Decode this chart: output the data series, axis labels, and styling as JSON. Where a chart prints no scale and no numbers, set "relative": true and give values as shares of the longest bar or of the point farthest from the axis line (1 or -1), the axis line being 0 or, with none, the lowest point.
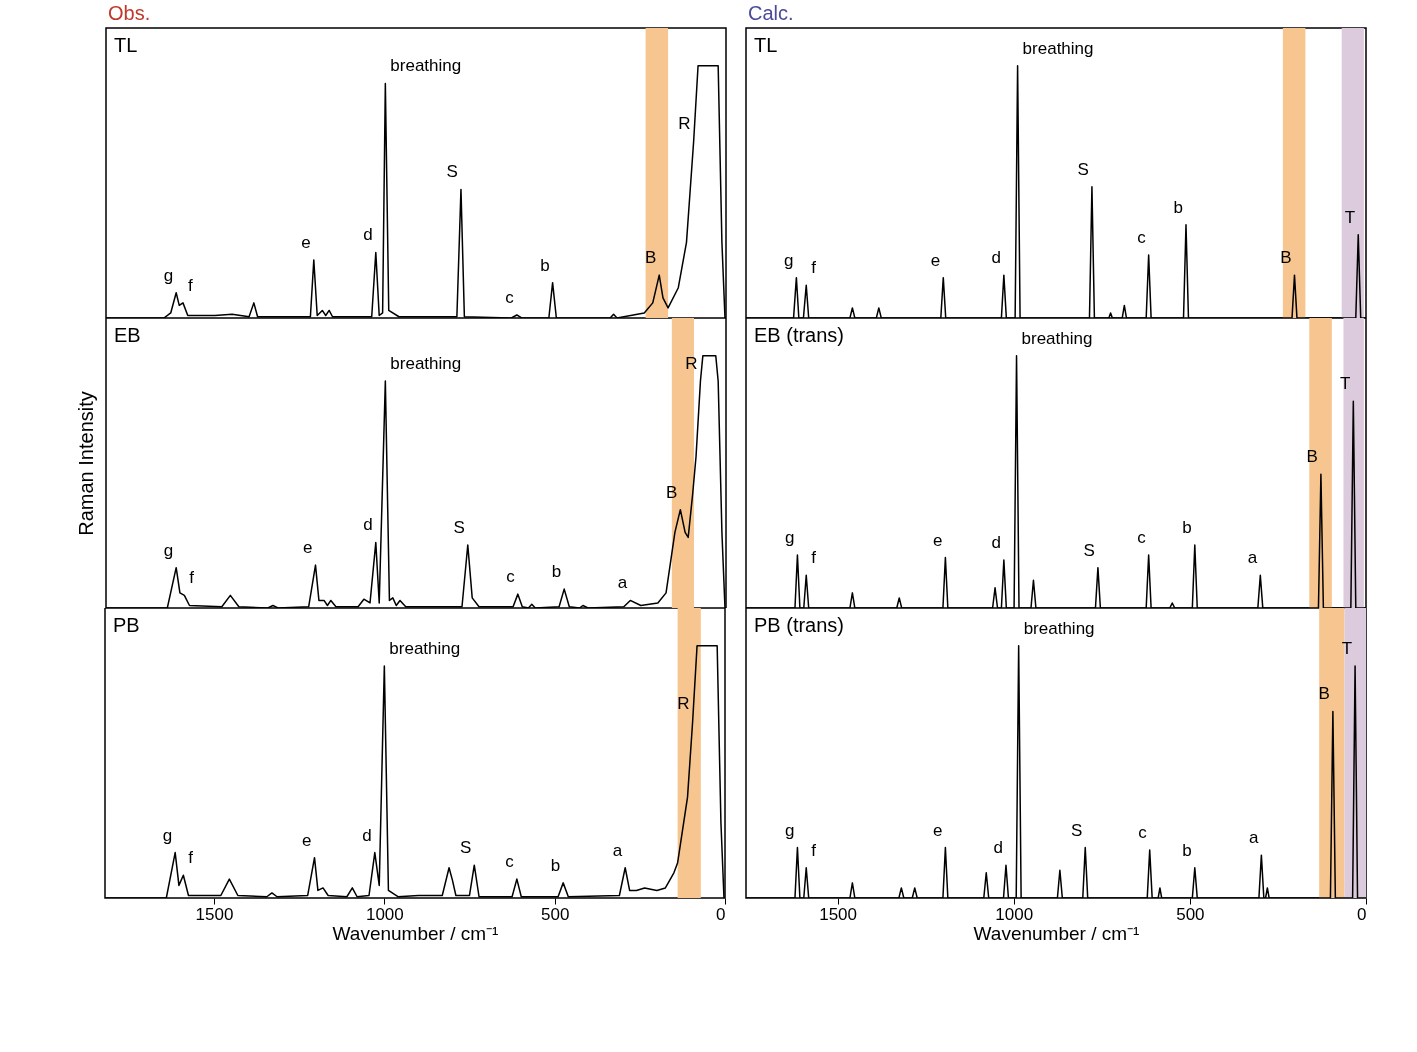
{
  "chart_data": [
    {
      "type": "line",
      "title": "TL",
      "annotations": [
        "Obs.",
        {
          "text": "g",
          "x": 1614,
          "y": 0.1
        },
        {
          "text": "f",
          "x": 1594,
          "y": 0.06
        },
        {
          "text": "e",
          "x": 1210,
          "y": 0.23
        },
        {
          "text": "d",
          "x": 1028,
          "y": 0.26
        },
        {
          "text": "breathing",
          "x": 1000,
          "y": 0.93
        },
        {
          "text": "S",
          "x": 778,
          "y": 0.51
        },
        {
          "text": "c",
          "x": 614,
          "y": 0.012
        },
        {
          "text": "b",
          "x": 509,
          "y": 0.14
        },
        {
          "text": "B",
          "x": 196,
          "y": 0.17
        },
        {
          "text": "R",
          "x": 95,
          "y": 0.7
        }
      ],
      "relative": true,
      "xlim": [
        1820,
        0
      ],
      "xticks": [
        1500,
        1000,
        500,
        0
      ],
      "tick_labels": false,
      "bands": [
        {
          "axis": "x",
          "from": 236,
          "to": 170,
          "color": "#f7c58f"
        }
      ],
      "series": [
        {
          "color": "#000000",
          "x": [
            1820,
            1650,
            1630,
            1614,
            1605,
            1594,
            1580,
            1500,
            1450,
            1400,
            1386,
            1375,
            1220,
            1210,
            1200,
            1185,
            1175,
            1165,
            1155,
            1040,
            1028,
            1018,
            1008,
            1000,
            990,
            960,
            790,
            778,
            768,
            630,
            614,
            600,
            520,
            509,
            498,
            340,
            330,
            320,
            240,
            215,
            196,
            185,
            170,
            140,
            116,
            95,
            82,
            23,
            12,
            3,
            0
          ],
          "values": [
            0,
            0,
            0.02,
            0.1,
            0.05,
            0.06,
            0.01,
            0.01,
            0.015,
            0.005,
            0.06,
            0.005,
            0.005,
            0.23,
            0.01,
            0.03,
            0.01,
            0.03,
            0.005,
            0.005,
            0.26,
            0.01,
            0.02,
            0.93,
            0.03,
            0.005,
            0.005,
            0.51,
            0.005,
            0,
            0.012,
            0,
            0,
            0.14,
            0,
            0,
            0.015,
            0,
            0.02,
            0.06,
            0.17,
            0.08,
            0.04,
            0.12,
            0.3,
            0.7,
            1,
            1,
            0.3,
            0,
            0
          ]
        }
      ]
    },
    {
      "type": "line",
      "title": "TL",
      "annotations": [
        "Calc.",
        {
          "text": "g",
          "x": 1617,
          "y": 0.16
        },
        {
          "text": "f",
          "x": 1589,
          "y": 0.13
        },
        {
          "text": "e",
          "x": 1200,
          "y": 0.16
        },
        {
          "text": "d",
          "x": 1028,
          "y": 0.17
        },
        {
          "text": "breathing",
          "x": 989,
          "y": 1
        },
        {
          "text": "S",
          "x": 778,
          "y": 0.52
        },
        {
          "text": "c",
          "x": 617,
          "y": 0.25
        },
        {
          "text": "b",
          "x": 511,
          "y": 0.37
        },
        {
          "text": "B",
          "x": 203,
          "y": 0.17
        },
        {
          "text": "T",
          "x": 22,
          "y": 0.33
        }
      ],
      "relative": true,
      "xlim": [
        1760,
        0
      ],
      "xticks": [
        1500,
        1000,
        500,
        0
      ],
      "tick_labels": false,
      "bands": [
        {
          "axis": "x",
          "from": 236,
          "to": 172,
          "color": "#f7c58f"
        },
        {
          "axis": "x",
          "from": 69,
          "to": 6,
          "color": "#dccbdc"
        }
      ],
      "series": [
        {
          "color": "#000000",
          "x": [
            1760,
            1625,
            1617,
            1610,
            1597,
            1589,
            1582,
            1465,
            1458,
            1451,
            1390,
            1383,
            1376,
            1207,
            1200,
            1193,
            1035,
            1028,
            1021,
            996,
            989,
            982,
            785,
            778,
            771,
            730,
            725,
            720,
            692,
            686,
            680,
            624,
            617,
            610,
            518,
            511,
            504,
            210,
            203,
            196,
            29,
            22,
            15,
            0
          ],
          "values": [
            0,
            0,
            0.16,
            0,
            0,
            0.13,
            0,
            0,
            0.04,
            0,
            0,
            0.04,
            0,
            0,
            0.16,
            0,
            0,
            0.17,
            0,
            0,
            1,
            0,
            0,
            0.52,
            0,
            0,
            0.02,
            0,
            0,
            0.05,
            0,
            0,
            0.25,
            0,
            0,
            0.37,
            0,
            0,
            0.17,
            0,
            0,
            0.33,
            0,
            0
          ]
        }
      ]
    },
    {
      "type": "line",
      "title": "EB",
      "ylabel": "Raman Intensity",
      "annotations": [
        {
          "text": "g",
          "x": 1614,
          "y": 0.16
        },
        {
          "text": "f",
          "x": 1590,
          "y": 0.05
        },
        {
          "text": "e",
          "x": 1205,
          "y": 0.17
        },
        {
          "text": "d",
          "x": 1028,
          "y": 0.26
        },
        {
          "text": "breathing",
          "x": 1000,
          "y": 0.9
        },
        {
          "text": "S",
          "x": 758,
          "y": 0.25
        },
        {
          "text": "c",
          "x": 611,
          "y": 0.055
        },
        {
          "text": "b",
          "x": 475,
          "y": 0.075
        },
        {
          "text": "a",
          "x": 281,
          "y": 0.03
        },
        {
          "text": "B",
          "x": 134,
          "y": 0.39
        },
        {
          "text": "R",
          "x": 75,
          "y": 0.9
        }
      ],
      "relative": true,
      "xlim": [
        1820,
        0
      ],
      "xticks": [
        1500,
        1000,
        500,
        0
      ],
      "tick_labels": false,
      "bands": [
        {
          "axis": "x",
          "from": 159,
          "to": 94,
          "color": "#f7c58f"
        }
      ],
      "series": [
        {
          "color": "#000000",
          "x": [
            1820,
            1640,
            1614,
            1603,
            1590,
            1575,
            1480,
            1455,
            1430,
            1345,
            1330,
            1315,
            1225,
            1205,
            1195,
            1180,
            1170,
            1160,
            1145,
            1080,
            1063,
            1045,
            1028,
            1018,
            1000,
            988,
            978,
            968,
            957,
            940,
            775,
            758,
            745,
            725,
            625,
            611,
            598,
            580,
            570,
            560,
            490,
            475,
            460,
            430,
            420,
            405,
            300,
            281,
            250,
            200,
            176,
            150,
            134,
            120,
            111,
            98,
            88,
            75,
            68,
            30,
            23,
            12,
            3,
            0
          ],
          "values": [
            0,
            0,
            0.16,
            0.06,
            0.05,
            0.01,
            0.005,
            0.05,
            0.005,
            0,
            0.01,
            0,
            0.005,
            0.17,
            0.03,
            0.03,
            0.01,
            0.03,
            0.005,
            0.005,
            0.035,
            0.02,
            0.26,
            0.02,
            0.9,
            0.03,
            0.04,
            0.01,
            0.03,
            0.005,
            0.005,
            0.25,
            0.04,
            0.005,
            0.005,
            0.055,
            0.005,
            0,
            0.015,
            0,
            0.005,
            0.075,
            0.005,
            0,
            0.01,
            0,
            0.005,
            0.03,
            0.01,
            0.02,
            0.06,
            0.3,
            0.39,
            0.3,
            0.28,
            0.45,
            0.6,
            0.9,
            1,
            1,
            0.9,
            0.3,
            0,
            0
          ]
        }
      ]
    },
    {
      "type": "line",
      "title": "EB (trans)",
      "annotations": [
        {
          "text": "g",
          "x": 1614,
          "y": 0.21
        },
        {
          "text": "f",
          "x": 1589,
          "y": 0.13
        },
        {
          "text": "e",
          "x": 1194,
          "y": 0.2
        },
        {
          "text": "d",
          "x": 1028,
          "y": 0.19
        },
        {
          "text": "breathing",
          "x": 992,
          "y": 1
        },
        {
          "text": "S",
          "x": 761,
          "y": 0.16
        },
        {
          "text": "c",
          "x": 617,
          "y": 0.21
        },
        {
          "text": "b",
          "x": 486,
          "y": 0.25
        },
        {
          "text": "a",
          "x": 300,
          "y": 0.13
        },
        {
          "text": "B",
          "x": 128,
          "y": 0.53
        },
        {
          "text": "T",
          "x": 36,
          "y": 0.82
        }
      ],
      "relative": true,
      "xlim": [
        1760,
        0
      ],
      "xticks": [
        1500,
        1000,
        500,
        0
      ],
      "tick_labels": false,
      "bands": [
        {
          "axis": "x",
          "from": 161,
          "to": 97,
          "color": "#f7c58f"
        },
        {
          "axis": "x",
          "from": 64,
          "to": 6,
          "color": "#dccbdc"
        }
      ],
      "series": [
        {
          "color": "#000000",
          "x": [
            1760,
            1621,
            1614,
            1607,
            1596,
            1589,
            1582,
            1465,
            1458,
            1451,
            1332,
            1325,
            1318,
            1201,
            1194,
            1187,
            1060,
            1053,
            1046,
            1035,
            1028,
            1021,
            999,
            992,
            985,
            951,
            944,
            937,
            768,
            761,
            754,
            624,
            617,
            610,
            557,
            550,
            543,
            493,
            486,
            479,
            307,
            300,
            293,
            135,
            128,
            121,
            43,
            36,
            29,
            0
          ],
          "values": [
            0,
            0,
            0.21,
            0,
            0,
            0.13,
            0,
            0,
            0.06,
            0,
            0,
            0.04,
            0,
            0,
            0.2,
            0,
            0,
            0.08,
            0,
            0,
            0.19,
            0,
            0,
            1,
            0,
            0,
            0.11,
            0,
            0,
            0.16,
            0,
            0,
            0.21,
            0,
            0,
            0.02,
            0,
            0,
            0.25,
            0,
            0,
            0.13,
            0,
            0,
            0.53,
            0,
            0,
            0.82,
            0,
            0
          ]
        }
      ]
    },
    {
      "type": "line",
      "title": "PB",
      "xlabel": "Wavenumber / cm⁻¹",
      "annotations": [
        {
          "text": "g",
          "x": 1614,
          "y": 0.18
        },
        {
          "text": "f",
          "x": 1590,
          "y": 0.09
        },
        {
          "text": "e",
          "x": 1205,
          "y": 0.16
        },
        {
          "text": "d",
          "x": 1028,
          "y": 0.18
        },
        {
          "text": "breathing",
          "x": 1000,
          "y": 0.92
        },
        {
          "text": "S",
          "x": 736,
          "y": 0.13
        },
        {
          "text": "c",
          "x": 611,
          "y": 0.075
        },
        {
          "text": "b",
          "x": 475,
          "y": 0.06
        },
        {
          "text": "a",
          "x": 293,
          "y": 0.12
        },
        {
          "text": "R",
          "x": 95,
          "y": 0.7
        }
      ],
      "relative": true,
      "xlim": [
        1820,
        0
      ],
      "xticks": [
        1500,
        1000,
        500,
        0
      ],
      "tick_labels": "x",
      "bands": [
        {
          "axis": "x",
          "from": 139,
          "to": 71,
          "color": "#f7c58f"
        }
      ],
      "series": [
        {
          "color": "#000000",
          "x": [
            1820,
            1640,
            1614,
            1603,
            1590,
            1575,
            1480,
            1455,
            1430,
            1345,
            1330,
            1315,
            1225,
            1205,
            1195,
            1180,
            1165,
            1110,
            1094,
            1080,
            1045,
            1028,
            1015,
            1000,
            988,
            960,
            900,
            830,
            810,
            800,
            790,
            750,
            736,
            722,
            625,
            611,
            598,
            490,
            475,
            460,
            310,
            293,
            280,
            260,
            236,
            200,
            175,
            150,
            139,
            110,
            95,
            82,
            23,
            12,
            3,
            0
          ],
          "values": [
            0,
            0,
            0.18,
            0.05,
            0.09,
            0.01,
            0.01,
            0.075,
            0.01,
            0.005,
            0.02,
            0.005,
            0.01,
            0.16,
            0.03,
            0.04,
            0.01,
            0.005,
            0.04,
            0.005,
            0.01,
            0.18,
            0.05,
            0.92,
            0.03,
            0.005,
            0.01,
            0.01,
            0.12,
            0.07,
            0.01,
            0.01,
            0.13,
            0.005,
            0.005,
            0.075,
            0.005,
            0.005,
            0.06,
            0.005,
            0.01,
            0.12,
            0.03,
            0.03,
            0.04,
            0.03,
            0.04,
            0.1,
            0.14,
            0.4,
            0.7,
            1,
            1,
            0.3,
            0,
            0
          ]
        }
      ]
    },
    {
      "type": "line",
      "title": "PB (trans)",
      "xlabel": "Wavenumber / cm⁻¹",
      "annotations": [
        {
          "text": "g",
          "x": 1614,
          "y": 0.2
        },
        {
          "text": "f",
          "x": 1589,
          "y": 0.12
        },
        {
          "text": "e",
          "x": 1194,
          "y": 0.2
        },
        {
          "text": "d",
          "x": 1022,
          "y": 0.13
        },
        {
          "text": "breathing",
          "x": 986,
          "y": 1
        },
        {
          "text": "S",
          "x": 797,
          "y": 0.2
        },
        {
          "text": "c",
          "x": 614,
          "y": 0.19
        },
        {
          "text": "b",
          "x": 486,
          "y": 0.12
        },
        {
          "text": "a",
          "x": 297,
          "y": 0.17
        },
        {
          "text": "B",
          "x": 94,
          "y": 0.74
        },
        {
          "text": "T",
          "x": 31,
          "y": 0.92
        }
      ],
      "relative": true,
      "xlim": [
        1760,
        0
      ],
      "xticks": [
        1500,
        1000,
        500,
        0
      ],
      "tick_labels": "x",
      "bands": [
        {
          "axis": "x",
          "from": 133,
          "to": 61,
          "color": "#f7c58f"
        },
        {
          "axis": "x",
          "from": 61,
          "to": 0,
          "color": "#dccbdc"
        }
      ],
      "series": [
        {
          "color": "#000000",
          "x": [
            1760,
            1621,
            1614,
            1607,
            1596,
            1589,
            1582,
            1465,
            1458,
            1451,
            1326,
            1319,
            1312,
            1288,
            1281,
            1274,
            1201,
            1194,
            1187,
            1085,
            1078,
            1071,
            1029,
            1022,
            1015,
            993,
            986,
            979,
            876,
            869,
            862,
            804,
            797,
            790,
            621,
            614,
            607,
            590,
            585,
            580,
            493,
            486,
            479,
            304,
            297,
            290,
            285,
            280,
            275,
            101,
            94,
            87,
            38,
            31,
            24,
            0
          ],
          "values": [
            0,
            0,
            0.2,
            0,
            0,
            0.12,
            0,
            0,
            0.06,
            0,
            0,
            0.04,
            0,
            0,
            0.04,
            0,
            0,
            0.2,
            0,
            0,
            0.1,
            0,
            0,
            0.13,
            0,
            0,
            1,
            0,
            0,
            0.11,
            0,
            0,
            0.2,
            0,
            0,
            0.19,
            0,
            0,
            0.04,
            0,
            0,
            0.12,
            0,
            0,
            0.17,
            0,
            0,
            0.04,
            0,
            0,
            0.74,
            0,
            0,
            0.92,
            0,
            0
          ]
        }
      ]
    }
  ]
}
